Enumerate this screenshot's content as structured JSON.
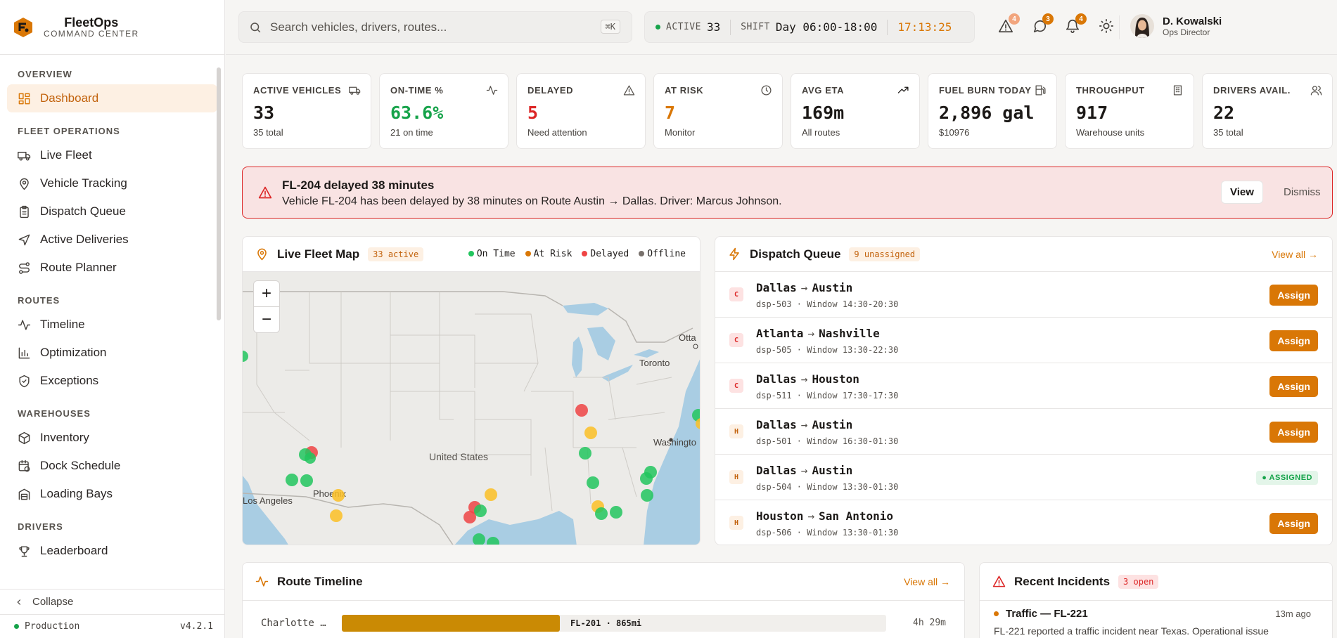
{
  "brand": {
    "name": "FleetOps",
    "subtitle": "COMMAND CENTER"
  },
  "sidebar": {
    "sections": [
      {
        "title": "OVERVIEW",
        "items": [
          {
            "label": "Dashboard",
            "icon": "dashboard-icon",
            "active": true
          }
        ]
      },
      {
        "title": "FLEET OPERATIONS",
        "items": [
          {
            "label": "Live Fleet",
            "icon": "truck-icon"
          },
          {
            "label": "Vehicle Tracking",
            "icon": "map-pin-icon"
          },
          {
            "label": "Dispatch Queue",
            "icon": "clipboard-icon"
          },
          {
            "label": "Active Deliveries",
            "icon": "send-icon"
          },
          {
            "label": "Route Planner",
            "icon": "route-icon"
          }
        ]
      },
      {
        "title": "ROUTES",
        "items": [
          {
            "label": "Timeline",
            "icon": "activity-icon"
          },
          {
            "label": "Optimization",
            "icon": "bar-chart-icon"
          },
          {
            "label": "Exceptions",
            "icon": "shield-icon"
          }
        ]
      },
      {
        "title": "WAREHOUSES",
        "items": [
          {
            "label": "Inventory",
            "icon": "package-icon"
          },
          {
            "label": "Dock Schedule",
            "icon": "calendar-clock-icon"
          },
          {
            "label": "Loading Bays",
            "icon": "warehouse-icon"
          }
        ]
      },
      {
        "title": "DRIVERS",
        "items": [
          {
            "label": "Leaderboard",
            "icon": "trophy-icon"
          }
        ]
      }
    ],
    "collapse_label": "Collapse",
    "env_label": "Production",
    "version": "v4.2.1"
  },
  "topbar": {
    "search_placeholder": "Search vehicles, drivers, routes...",
    "search_shortcut": "⌘K",
    "active_label": "ACTIVE",
    "active_count": "33",
    "shift_label": "SHIFT",
    "shift_value": "Day 06:00-18:00",
    "clock": "17:13:25",
    "badges": {
      "alerts": "4",
      "messages": "3",
      "notifications": "4"
    },
    "user": {
      "name": "D. Kowalski",
      "role": "Ops Director"
    }
  },
  "kpis": [
    {
      "label": "ACTIVE VEHICLES",
      "value": "33",
      "sub": "35 total",
      "icon": "truck-icon",
      "color": "#1c1917"
    },
    {
      "label": "ON-TIME %",
      "value": "63.6%",
      "sub": "21 on time",
      "icon": "activity-icon",
      "color": "#16a34a"
    },
    {
      "label": "DELAYED",
      "value": "5",
      "sub": "Need attention",
      "icon": "alert-triangle-icon",
      "color": "#dc2626"
    },
    {
      "label": "AT RISK",
      "value": "7",
      "sub": "Monitor",
      "icon": "clock-icon",
      "color": "#d97706"
    },
    {
      "label": "AVG ETA",
      "value": "169m",
      "sub": "All routes",
      "icon": "trending-up-icon",
      "color": "#1c1917"
    },
    {
      "label": "FUEL BURN TODAY",
      "value": "2,896 gal",
      "sub": "$10976",
      "icon": "fuel-icon",
      "color": "#1c1917"
    },
    {
      "label": "THROUGHPUT",
      "value": "917",
      "sub": "Warehouse units",
      "icon": "building-icon",
      "color": "#1c1917"
    },
    {
      "label": "DRIVERS AVAIL.",
      "value": "22",
      "sub": "35 total",
      "icon": "users-icon",
      "color": "#1c1917"
    }
  ],
  "alert": {
    "title": "FL-204 delayed 38 minutes",
    "description": "Vehicle FL-204 has been delayed by 38 minutes on Route Austin → Dallas. Driver: Marcus Johnson.",
    "view_label": "View",
    "dismiss_label": "Dismiss"
  },
  "map": {
    "title": "Live Fleet Map",
    "active_chip": "33 active",
    "legend": [
      {
        "label": "On Time",
        "color": "#22c55e"
      },
      {
        "label": "At Risk",
        "color": "#fbbf24"
      },
      {
        "label": "Delayed",
        "color": "#ef4444"
      },
      {
        "label": "Offline",
        "color": "#78716c"
      }
    ],
    "labels": {
      "country": "United States",
      "city1": "Phoenix",
      "city2": "Los Angeles",
      "city3": "Toronto",
      "city4": "Washingto",
      "city5": "Otta"
    },
    "zoom_in": "+",
    "zoom_out": "−"
  },
  "queue": {
    "title": "Dispatch Queue",
    "chip": "9 unassigned",
    "view_all": "View all →",
    "rows": [
      {
        "priority": "C",
        "from": "Dallas",
        "to": "Austin",
        "id": "dsp-503",
        "window": "Window 14:30-20:30",
        "action": "Assign"
      },
      {
        "priority": "C",
        "from": "Atlanta",
        "to": "Nashville",
        "id": "dsp-505",
        "window": "Window 13:30-22:30",
        "action": "Assign"
      },
      {
        "priority": "C",
        "from": "Dallas",
        "to": "Houston",
        "id": "dsp-511",
        "window": "Window 17:30-17:30",
        "action": "Assign"
      },
      {
        "priority": "H",
        "from": "Dallas",
        "to": "Austin",
        "id": "dsp-501",
        "window": "Window 16:30-01:30",
        "action": "Assign"
      },
      {
        "priority": "H",
        "from": "Dallas",
        "to": "Austin",
        "id": "dsp-504",
        "window": "Window 13:30-01:30",
        "action": "● ASSIGNED"
      },
      {
        "priority": "H",
        "from": "Houston",
        "to": "San Antonio",
        "id": "dsp-506",
        "window": "Window 13:30-01:30",
        "action": "Assign"
      }
    ]
  },
  "timeline": {
    "title": "Route Timeline",
    "view_all": "View all →",
    "rows": [
      {
        "name": "Charlotte …",
        "bar_label": "FL-201 · 865mi",
        "duration": "4h 29m",
        "progress": 0.4
      }
    ]
  },
  "incidents": {
    "title": "Recent Incidents",
    "chip": "3 open",
    "items": [
      {
        "title": "Traffic — FL-221",
        "time": "13m ago",
        "description": "FL-221 reported a traffic incident near Texas. Operational issue"
      }
    ]
  }
}
